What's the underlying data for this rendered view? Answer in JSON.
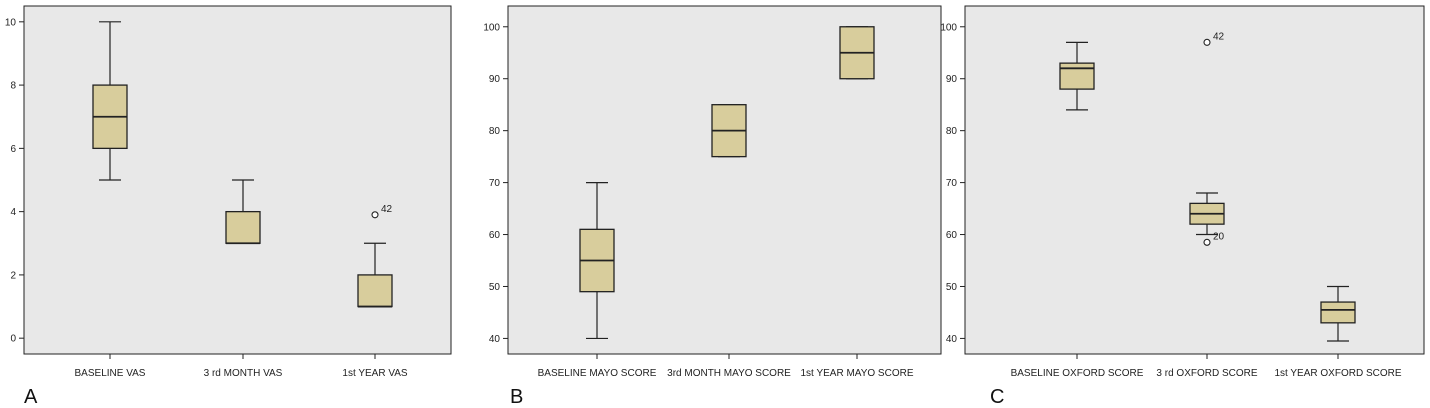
{
  "colors": {
    "plot_bg": "#e8e8e8",
    "box_fill": "#d8cd9c",
    "stroke": "#222222"
  },
  "chart_data": [
    {
      "type": "box",
      "panel_label": "A",
      "ylim": [
        -0.5,
        10.5
      ],
      "yticks": [
        0,
        2,
        4,
        6,
        8,
        10
      ],
      "grid": false,
      "categories": [
        "BASELINE VAS",
        "3 rd MONTH VAS",
        "1st YEAR VAS"
      ],
      "boxes": [
        {
          "whisker_low": 5,
          "q1": 6,
          "median": 7,
          "q3": 8,
          "whisker_high": 10,
          "outliers": []
        },
        {
          "whisker_low": 3,
          "q1": 3,
          "median": 3,
          "q3": 4,
          "whisker_high": 5,
          "outliers": []
        },
        {
          "whisker_low": 1,
          "q1": 1,
          "median": 1,
          "q3": 2,
          "whisker_high": 3,
          "outliers": [
            {
              "value": 3.9,
              "label": "42"
            }
          ]
        }
      ]
    },
    {
      "type": "box",
      "panel_label": "B",
      "ylim": [
        37,
        104
      ],
      "yticks": [
        40,
        50,
        60,
        70,
        80,
        90,
        100
      ],
      "grid": false,
      "categories": [
        "BASELINE MAYO SCORE",
        "3rd MONTH MAYO SCORE",
        "1st YEAR MAYO SCORE"
      ],
      "boxes": [
        {
          "whisker_low": 40,
          "q1": 49,
          "median": 55,
          "q3": 61,
          "whisker_high": 70,
          "outliers": []
        },
        {
          "whisker_low": 75,
          "q1": 75,
          "median": 80,
          "q3": 85,
          "whisker_high": 85,
          "outliers": []
        },
        {
          "whisker_low": 90,
          "q1": 90,
          "median": 95,
          "q3": 100,
          "whisker_high": 100,
          "outliers": []
        }
      ]
    },
    {
      "type": "box",
      "panel_label": "C",
      "ylim": [
        37,
        104
      ],
      "yticks": [
        40,
        50,
        60,
        70,
        80,
        90,
        100
      ],
      "grid": false,
      "categories": [
        "BASELINE OXFORD SCORE",
        "3 rd OXFORD SCORE",
        "1st YEAR OXFORD SCORE"
      ],
      "boxes": [
        {
          "whisker_low": 84,
          "q1": 88,
          "median": 92,
          "q3": 93,
          "whisker_high": 97,
          "outliers": []
        },
        {
          "whisker_low": 60,
          "q1": 62,
          "median": 64,
          "q3": 66,
          "whisker_high": 68,
          "outliers": [
            {
              "value": 97,
              "label": "42"
            },
            {
              "value": 58.5,
              "label": "20"
            }
          ]
        },
        {
          "whisker_low": 39.5,
          "q1": 43,
          "median": 45.5,
          "q3": 47,
          "whisker_high": 50,
          "outliers": []
        }
      ]
    }
  ]
}
